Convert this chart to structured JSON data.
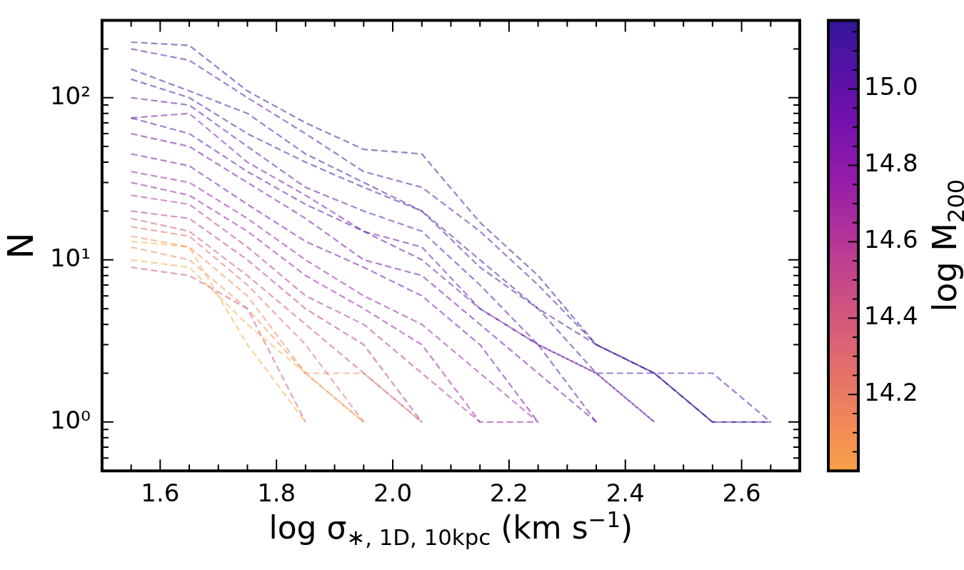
{
  "chart_data": {
    "type": "line",
    "xlabel": "log σ$_{∗, 1D, 10kpc}$ (km s$^{−1}$)",
    "ylabel": "N",
    "clabel": "log M$_{200}$",
    "x": [
      1.55,
      1.65,
      1.75,
      1.85,
      1.95,
      2.05,
      2.15,
      2.25,
      2.35,
      2.45,
      2.55,
      2.65
    ],
    "series": [
      {
        "color": "#2a0593",
        "values": [
          220,
          210,
          110,
          70,
          48,
          45,
          17,
          8,
          3,
          2,
          1,
          1
        ]
      },
      {
        "color": "#4c02a1",
        "values": [
          200,
          170,
          100,
          60,
          35,
          28,
          15,
          7,
          3,
          2,
          2,
          1
        ]
      },
      {
        "color": "#3b049a",
        "values": [
          150,
          110,
          80,
          45,
          30,
          20,
          10,
          5,
          3,
          2,
          1,
          null
        ]
      },
      {
        "color": "#3b049a",
        "values": [
          130,
          100,
          60,
          40,
          28,
          20,
          9,
          5,
          2,
          2,
          1,
          1
        ]
      },
      {
        "color": "#4c02a1",
        "values": [
          100,
          90,
          50,
          28,
          20,
          15,
          7,
          3,
          2,
          1,
          null,
          null
        ]
      },
      {
        "color": "#4c02a1",
        "values": [
          75,
          60,
          35,
          22,
          15,
          10,
          5,
          3,
          1,
          null,
          null,
          null
        ]
      },
      {
        "color": "#6a00a8",
        "values": [
          75,
          80,
          40,
          25,
          15,
          12,
          5,
          3,
          2,
          1,
          null,
          null
        ]
      },
      {
        "color": "#6a00a8",
        "values": [
          60,
          50,
          30,
          18,
          10,
          8,
          4,
          2,
          1,
          null,
          null,
          null
        ]
      },
      {
        "color": "#6a00a8",
        "values": [
          45,
          38,
          22,
          13,
          9,
          6,
          3,
          1,
          null,
          null,
          null,
          null
        ]
      },
      {
        "color": "#8f0da4",
        "values": [
          35,
          30,
          18,
          10,
          6,
          4,
          2,
          1,
          null,
          null,
          null,
          null
        ]
      },
      {
        "color": "#8f0da4",
        "values": [
          30,
          25,
          15,
          8,
          5,
          3,
          1,
          1,
          null,
          null,
          null,
          null
        ]
      },
      {
        "color": "#b12a90",
        "values": [
          25,
          22,
          12,
          6,
          4,
          2,
          1,
          null,
          null,
          null,
          null,
          null
        ]
      },
      {
        "color": "#b12a90",
        "values": [
          20,
          18,
          10,
          5,
          3,
          1,
          null,
          null,
          null,
          null,
          null,
          null
        ]
      },
      {
        "color": "#cc4778",
        "values": [
          18,
          15,
          8,
          4,
          2,
          1,
          null,
          null,
          null,
          null,
          null,
          null
        ]
      },
      {
        "color": "#cc4778",
        "values": [
          9,
          8,
          5,
          1,
          null,
          null,
          null,
          null,
          null,
          null,
          null,
          null
        ]
      },
      {
        "color": "#e16462",
        "values": [
          16,
          14,
          7,
          3,
          1,
          null,
          null,
          null,
          null,
          null,
          null,
          null
        ]
      },
      {
        "color": "#f2844b",
        "values": [
          14,
          12,
          6,
          2,
          1,
          null,
          null,
          null,
          null,
          null,
          null,
          null
        ]
      },
      {
        "color": "#f2844b",
        "values": [
          12,
          10,
          5,
          2,
          2,
          1,
          null,
          null,
          null,
          null,
          null,
          null
        ]
      },
      {
        "color": "#fca636",
        "values": [
          10,
          9,
          4,
          2,
          1,
          null,
          null,
          null,
          null,
          null,
          null,
          null
        ]
      },
      {
        "color": "#fca636",
        "values": [
          13,
          12,
          3,
          1,
          null,
          null,
          null,
          null,
          null,
          null,
          null,
          null
        ]
      }
    ],
    "line_style": "dashed",
    "log": "y",
    "xlim": [
      1.5,
      2.7
    ],
    "xticks": [
      {
        "value": 1.55,
        "label": null
      },
      1.6,
      {
        "value": 1.65,
        "label": null
      },
      {
        "value": 1.7,
        "label": null
      },
      {
        "value": 1.75,
        "label": null
      },
      1.8,
      {
        "value": 1.85,
        "label": null
      },
      {
        "value": 1.9,
        "label": null
      },
      {
        "value": 1.95,
        "label": null
      },
      {
        "value": 2.0,
        "label": "2.0"
      },
      {
        "value": 2.05,
        "label": null
      },
      {
        "value": 2.1,
        "label": null
      },
      {
        "value": 2.15,
        "label": null
      },
      2.2,
      {
        "value": 2.25,
        "label": null
      },
      {
        "value": 2.3,
        "label": null
      },
      {
        "value": 2.35,
        "label": null
      },
      2.4,
      {
        "value": 2.45,
        "label": null
      },
      {
        "value": 2.5,
        "label": null
      },
      {
        "value": 2.55,
        "label": null
      },
      2.6,
      {
        "value": 2.65,
        "label": null
      }
    ],
    "ylim": [
      0.5,
      300
    ],
    "yticks": [
      {
        "value": 0.6,
        "label": null
      },
      {
        "value": 0.7,
        "label": null
      },
      {
        "value": 0.8,
        "label": null
      },
      {
        "value": 0.9,
        "label": null
      },
      {
        "value": 1,
        "label": "10⁰"
      },
      {
        "value": 2,
        "label": null
      },
      {
        "value": 3,
        "label": null
      },
      {
        "value": 4,
        "label": null
      },
      {
        "value": 5,
        "label": null
      },
      {
        "value": 6,
        "label": null
      },
      {
        "value": 7,
        "label": null
      },
      {
        "value": 8,
        "label": null
      },
      {
        "value": 9,
        "label": null
      },
      {
        "value": 10,
        "label": "10¹"
      },
      {
        "value": 20,
        "label": null
      },
      {
        "value": 30,
        "label": null
      },
      {
        "value": 40,
        "label": null
      },
      {
        "value": 50,
        "label": null
      },
      {
        "value": 60,
        "label": null
      },
      {
        "value": 70,
        "label": null
      },
      {
        "value": 80,
        "label": null
      },
      {
        "value": 90,
        "label": null
      },
      {
        "value": 100,
        "label": "10²"
      },
      {
        "value": 200,
        "label": null
      }
    ],
    "clim": [
      14.0,
      15.18
    ],
    "cticks": [
      {
        "value": 14.05,
        "label": null
      },
      {
        "value": 14.1,
        "label": null
      },
      {
        "value": 14.15,
        "label": null
      },
      14.2,
      {
        "value": 14.25,
        "label": null
      },
      {
        "value": 14.3,
        "label": null
      },
      {
        "value": 14.35,
        "label": null
      },
      14.4,
      {
        "value": 14.45,
        "label": null
      },
      {
        "value": 14.5,
        "label": null
      },
      {
        "value": 14.55,
        "label": null
      },
      14.6,
      {
        "value": 14.65,
        "label": null
      },
      {
        "value": 14.7,
        "label": null
      },
      {
        "value": 14.75,
        "label": null
      },
      14.8,
      {
        "value": 14.85,
        "label": null
      },
      {
        "value": 14.9,
        "label": null
      },
      {
        "value": 14.95,
        "label": null
      },
      {
        "value": 15.0,
        "label": "15.0"
      },
      {
        "value": 15.05,
        "label": null
      },
      {
        "value": 15.1,
        "label": null
      },
      {
        "value": 15.15,
        "label": null
      }
    ]
  }
}
